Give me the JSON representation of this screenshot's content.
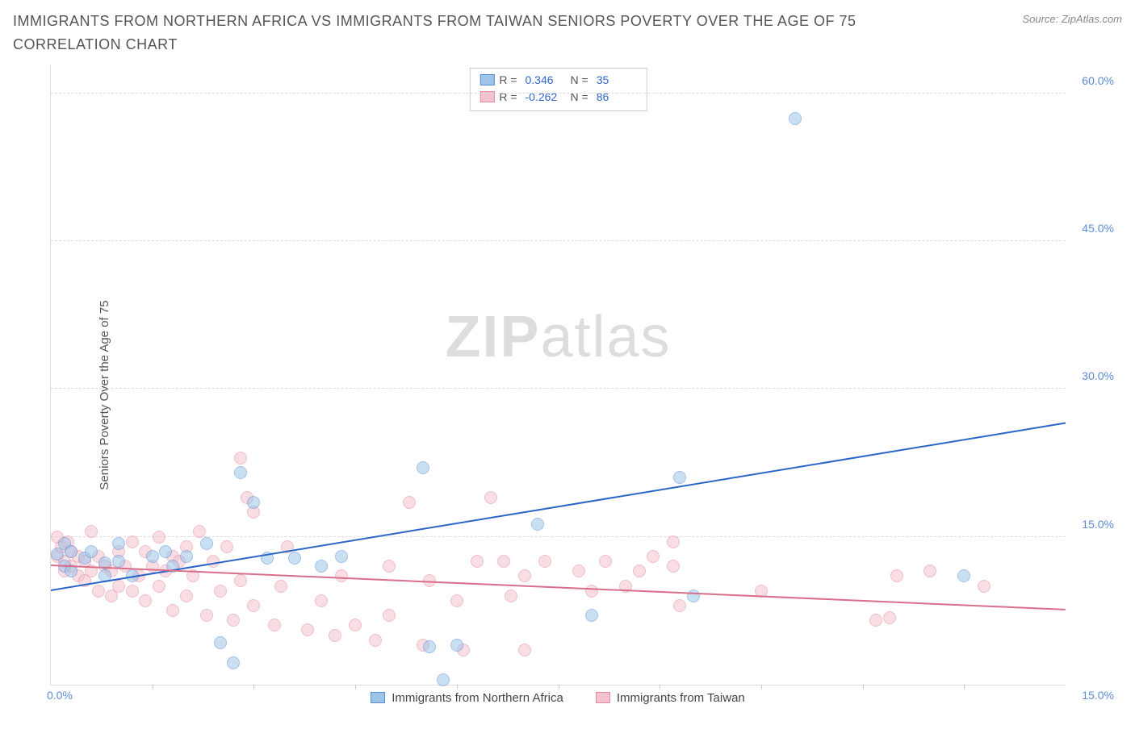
{
  "title": "IMMIGRANTS FROM NORTHERN AFRICA VS IMMIGRANTS FROM TAIWAN SENIORS POVERTY OVER THE AGE OF 75 CORRELATION CHART",
  "source": "Source: ZipAtlas.com",
  "ylabel": "Seniors Poverty Over the Age of 75",
  "watermark_bold": "ZIP",
  "watermark_light": "atlas",
  "chart": {
    "type": "scatter",
    "background_color": "#ffffff",
    "grid_color": "#dddddd",
    "grid_dash": "dashed",
    "xlim": [
      0,
      15
    ],
    "ylim": [
      0,
      63
    ],
    "xtick_positions": [
      1.5,
      3.0,
      4.5,
      6.0,
      7.5,
      9.0,
      10.5,
      12.0,
      13.5
    ],
    "ytick_labels": [
      {
        "value": 15,
        "label": "15.0%"
      },
      {
        "value": 30,
        "label": "30.0%"
      },
      {
        "value": 45,
        "label": "45.0%"
      },
      {
        "value": 60,
        "label": "60.0%"
      }
    ],
    "xaxis_start_label": "0.0%",
    "xaxis_end_label": "15.0%",
    "ytick_color": "#5b8dd6",
    "label_fontsize": 15,
    "marker_radius": 8,
    "marker_opacity": 0.55,
    "series": [
      {
        "name": "Immigrants from Northern Africa",
        "fill_color": "#9ec5e8",
        "stroke_color": "#5b8dd6",
        "line_color": "#2a66c8",
        "R_label": "R =",
        "R_value": "0.346",
        "N_label": "N =",
        "N_value": "35",
        "regression": {
          "x1": 0,
          "y1": 9.5,
          "x2": 15,
          "y2": 26.5
        },
        "points": [
          [
            0.1,
            13.2
          ],
          [
            0.2,
            12.0
          ],
          [
            0.2,
            14.3
          ],
          [
            0.3,
            13.5
          ],
          [
            0.3,
            11.5
          ],
          [
            0.5,
            12.8
          ],
          [
            0.6,
            13.5
          ],
          [
            0.8,
            12.3
          ],
          [
            0.8,
            11.0
          ],
          [
            1.0,
            14.3
          ],
          [
            1.0,
            12.5
          ],
          [
            1.2,
            11.0
          ],
          [
            1.5,
            13.0
          ],
          [
            1.7,
            13.5
          ],
          [
            1.8,
            12.0
          ],
          [
            2.0,
            13.0
          ],
          [
            2.3,
            14.3
          ],
          [
            2.5,
            4.2
          ],
          [
            2.7,
            2.2
          ],
          [
            2.8,
            21.5
          ],
          [
            3.0,
            18.5
          ],
          [
            3.2,
            12.8
          ],
          [
            3.6,
            12.8
          ],
          [
            4.0,
            12.0
          ],
          [
            4.3,
            13.0
          ],
          [
            5.5,
            22.0
          ],
          [
            5.6,
            3.8
          ],
          [
            5.8,
            0.5
          ],
          [
            6.0,
            4.0
          ],
          [
            7.2,
            16.3
          ],
          [
            8.0,
            7.0
          ],
          [
            9.3,
            21.0
          ],
          [
            9.5,
            9.0
          ],
          [
            11.0,
            57.5
          ],
          [
            13.5,
            11.0
          ]
        ]
      },
      {
        "name": "Immigrants from Taiwan",
        "fill_color": "#f4c2cd",
        "stroke_color": "#e38ba0",
        "line_color": "#d86f8a",
        "R_label": "R =",
        "R_value": "-0.262",
        "N_label": "N =",
        "N_value": "86",
        "regression": {
          "x1": 0,
          "y1": 12.0,
          "x2": 15,
          "y2": 7.5
        },
        "points": [
          [
            0.1,
            15.0
          ],
          [
            0.1,
            13.0
          ],
          [
            0.15,
            14.0
          ],
          [
            0.2,
            12.5
          ],
          [
            0.2,
            11.5
          ],
          [
            0.25,
            14.5
          ],
          [
            0.3,
            12.0
          ],
          [
            0.3,
            13.5
          ],
          [
            0.4,
            11.0
          ],
          [
            0.4,
            13.0
          ],
          [
            0.5,
            10.5
          ],
          [
            0.5,
            12.5
          ],
          [
            0.6,
            15.5
          ],
          [
            0.6,
            11.5
          ],
          [
            0.7,
            13.0
          ],
          [
            0.7,
            9.5
          ],
          [
            0.8,
            12.0
          ],
          [
            0.9,
            9.0
          ],
          [
            0.9,
            11.5
          ],
          [
            1.0,
            13.5
          ],
          [
            1.0,
            10.0
          ],
          [
            1.1,
            12.0
          ],
          [
            1.2,
            14.5
          ],
          [
            1.2,
            9.5
          ],
          [
            1.3,
            11.0
          ],
          [
            1.4,
            13.5
          ],
          [
            1.4,
            8.5
          ],
          [
            1.5,
            12.0
          ],
          [
            1.6,
            15.0
          ],
          [
            1.6,
            10.0
          ],
          [
            1.7,
            11.5
          ],
          [
            1.8,
            13.0
          ],
          [
            1.8,
            7.5
          ],
          [
            1.9,
            12.5
          ],
          [
            2.0,
            9.0
          ],
          [
            2.0,
            14.0
          ],
          [
            2.1,
            11.0
          ],
          [
            2.2,
            15.5
          ],
          [
            2.3,
            7.0
          ],
          [
            2.4,
            12.5
          ],
          [
            2.5,
            9.5
          ],
          [
            2.6,
            14.0
          ],
          [
            2.7,
            6.5
          ],
          [
            2.8,
            23.0
          ],
          [
            2.8,
            10.5
          ],
          [
            2.9,
            19.0
          ],
          [
            3.0,
            8.0
          ],
          [
            3.0,
            17.5
          ],
          [
            3.3,
            6.0
          ],
          [
            3.4,
            10.0
          ],
          [
            3.5,
            14.0
          ],
          [
            3.8,
            5.5
          ],
          [
            4.0,
            8.5
          ],
          [
            4.2,
            5.0
          ],
          [
            4.3,
            11.0
          ],
          [
            4.5,
            6.0
          ],
          [
            4.8,
            4.5
          ],
          [
            5.0,
            7.0
          ],
          [
            5.0,
            12.0
          ],
          [
            5.3,
            18.5
          ],
          [
            5.5,
            4.0
          ],
          [
            5.6,
            10.5
          ],
          [
            6.0,
            8.5
          ],
          [
            6.1,
            3.5
          ],
          [
            6.3,
            12.5
          ],
          [
            6.5,
            19.0
          ],
          [
            6.7,
            12.5
          ],
          [
            6.8,
            9.0
          ],
          [
            7.0,
            11.0
          ],
          [
            7.0,
            3.5
          ],
          [
            7.3,
            12.5
          ],
          [
            7.8,
            11.5
          ],
          [
            8.0,
            9.5
          ],
          [
            8.2,
            12.5
          ],
          [
            8.5,
            10.0
          ],
          [
            8.7,
            11.5
          ],
          [
            8.9,
            13.0
          ],
          [
            9.2,
            14.5
          ],
          [
            9.2,
            12.0
          ],
          [
            9.3,
            8.0
          ],
          [
            10.5,
            9.5
          ],
          [
            12.2,
            6.5
          ],
          [
            12.4,
            6.8
          ],
          [
            12.5,
            11.0
          ],
          [
            13.0,
            11.5
          ],
          [
            13.8,
            10.0
          ]
        ]
      }
    ]
  }
}
